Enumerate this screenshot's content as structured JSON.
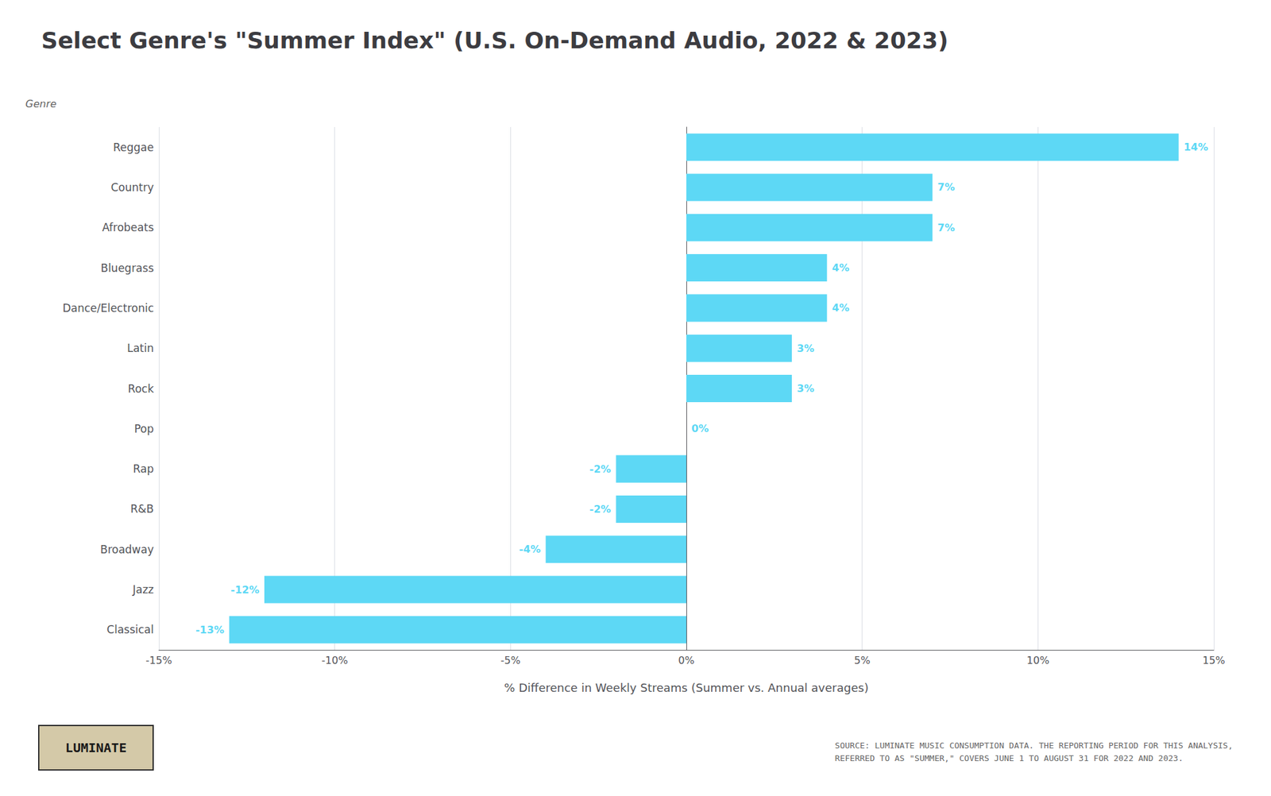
{
  "chart_data": {
    "type": "bar",
    "orientation": "horizontal",
    "title": "Select Genre's \"Summer Index\" (U.S. On-Demand Audio, 2022 & 2023)",
    "categories": [
      "Reggae",
      "Country",
      "Afrobeats",
      "Bluegrass",
      "Dance/Electronic",
      "Latin",
      "Rock",
      "Pop",
      "Rap",
      "R&B",
      "Broadway",
      "Jazz",
      "Classical"
    ],
    "values": [
      14,
      7,
      7,
      4,
      4,
      3,
      3,
      0,
      -2,
      -2,
      -4,
      -12,
      -13
    ],
    "value_labels": [
      "14%",
      "7%",
      "7%",
      "4%",
      "4%",
      "3%",
      "3%",
      "0%",
      "-2%",
      "-2%",
      "-4%",
      "-12%",
      "-13%"
    ],
    "data_labels": true,
    "color": "#5DD8F5",
    "xlabel": "% Difference in Weekly Streams (Summer vs. Annual averages)",
    "ylabel": "Genre",
    "xlim": [
      -15,
      15
    ],
    "xticks": [
      {
        "value": -15,
        "label": "-15%"
      },
      {
        "value": -10,
        "label": "-10%"
      },
      {
        "value": -5,
        "label": "-5%"
      },
      {
        "value": 0,
        "label": "0%"
      },
      {
        "value": 5,
        "label": "5%"
      },
      {
        "value": 10,
        "label": "10%"
      },
      {
        "value": 15,
        "label": "15%"
      }
    ],
    "grid": true,
    "annotations": [
      "SOURCE: LUMINATE MUSIC CONSUMPTION DATA. THE REPORTING PERIOD FOR THIS ANALYSIS,\nREFERRED TO AS \"SUMMER,\" COVERS JUNE 1 TO AUGUST 31 FOR 2022 AND 2023.",
      "LUMINATE"
    ]
  }
}
